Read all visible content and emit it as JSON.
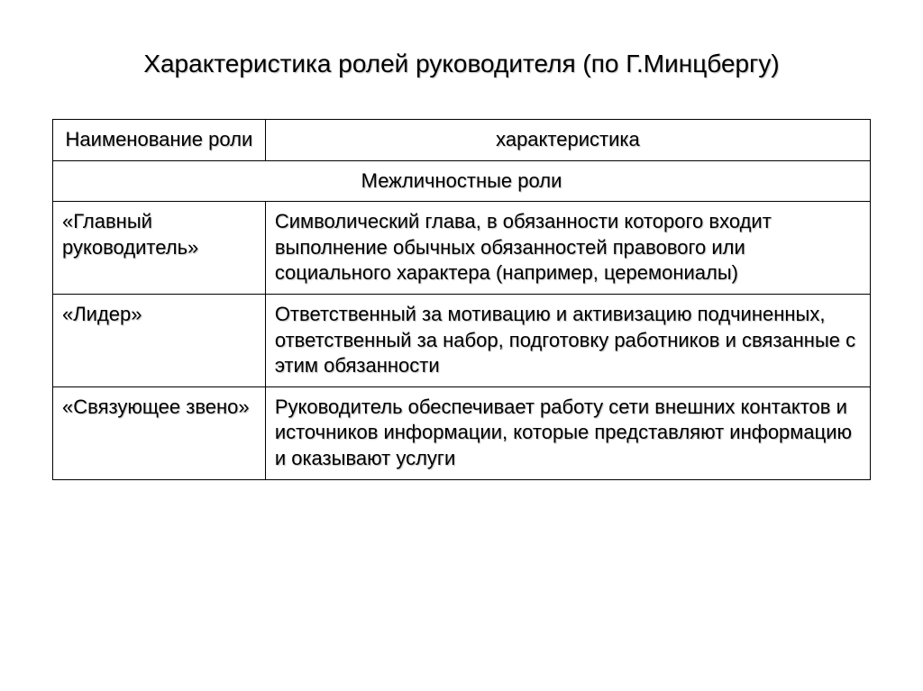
{
  "title": "Характеристика ролей руководителя (по Г.Минцбергу)",
  "table": {
    "columns": [
      "Наименование роли",
      "характеристика"
    ],
    "col_widths_pct": [
      26,
      74
    ],
    "border_color": "#000000",
    "background_color": "#ffffff",
    "font_size_pt": 22,
    "header_align": "center",
    "section_label": "Межличностные роли",
    "rows": [
      {
        "name": "«Главный руководитель»",
        "desc": "Символический глава, в обязанности которого входит выполнение обычных обязанностей правового или социального характера (например, церемониалы)"
      },
      {
        "name": "«Лидер»",
        "desc": "Ответственный за мотивацию и активизацию подчиненных, ответственный за набор, подготовку работников и связанные с этим обязанности"
      },
      {
        "name": "«Связующее звено»",
        "desc": "Руководитель обеспечивает работу сети внешних контактов и источников информации, которые представляют информацию и оказывают услуги"
      }
    ]
  }
}
